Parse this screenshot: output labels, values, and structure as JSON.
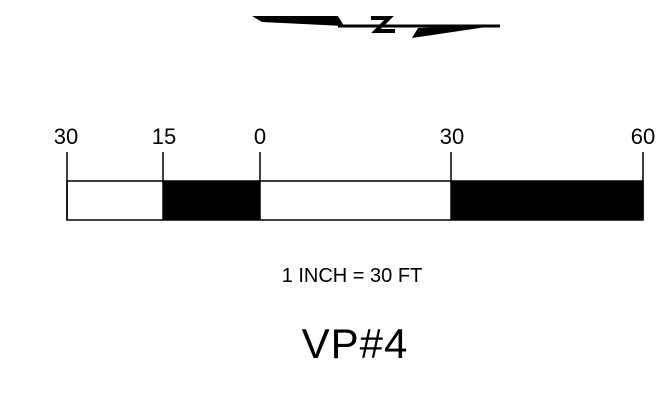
{
  "north_arrow": {
    "icon": "north-arrow-icon",
    "letter": "N"
  },
  "scale_bar": {
    "tick_labels": [
      "30",
      "15",
      "0",
      "30",
      "60"
    ],
    "segments": [
      {
        "from": "30",
        "to": "15",
        "fill": "white"
      },
      {
        "from": "15",
        "to": "0",
        "fill": "black"
      },
      {
        "from": "0",
        "to": "30",
        "fill": "white"
      },
      {
        "from": "30",
        "to": "60",
        "fill": "black"
      }
    ],
    "caption": "1 INCH = 30 FT"
  },
  "title": "VP#4",
  "colors": {
    "ink": "#000000",
    "paper": "#ffffff"
  }
}
